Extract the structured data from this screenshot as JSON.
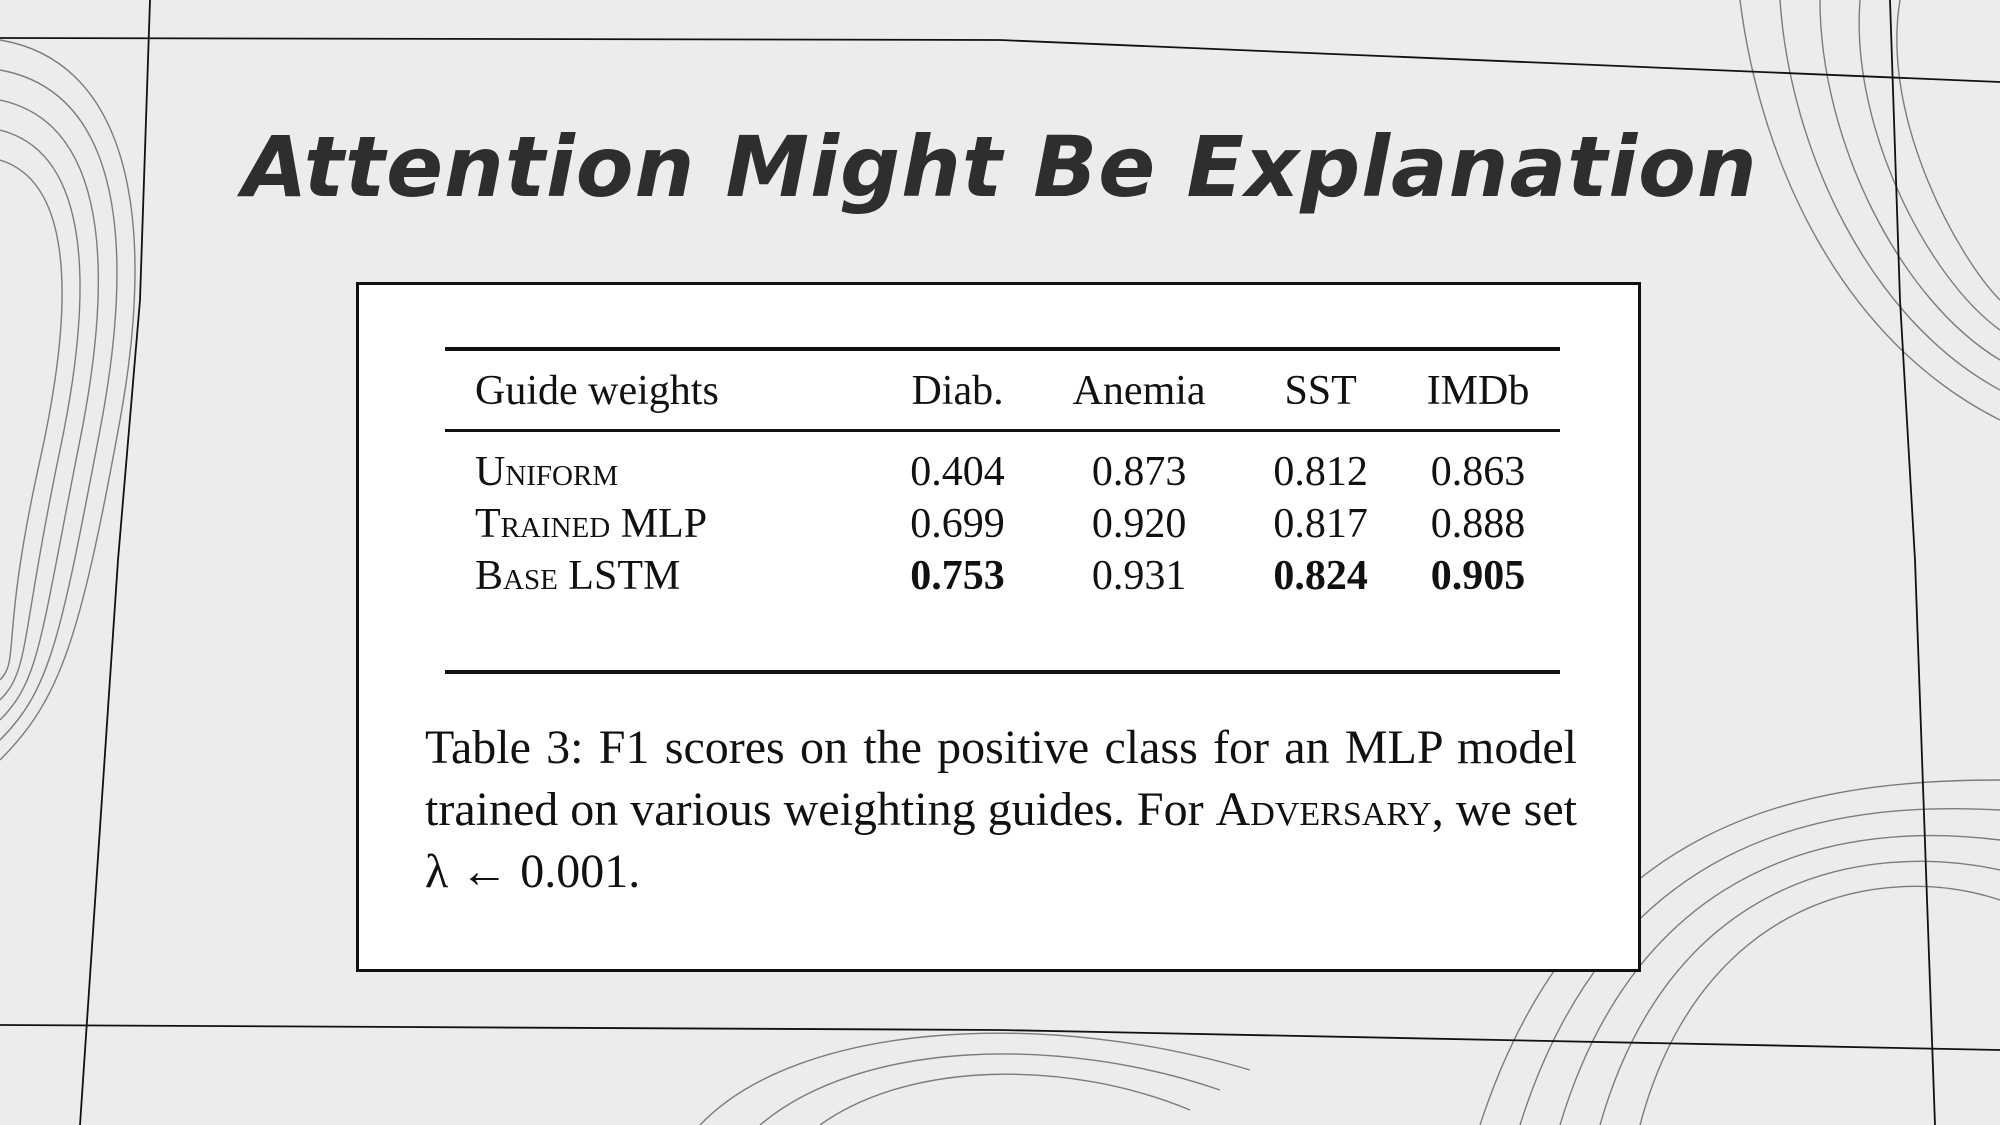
{
  "slide": {
    "title": "Attention Might Be Explanation"
  },
  "table": {
    "headers": [
      "Guide weights",
      "Diab.",
      "Anemia",
      "SST",
      "IMDb"
    ],
    "rows": [
      {
        "label": "Uniform",
        "values": [
          "0.404",
          "0.873",
          "0.812",
          "0.863"
        ],
        "bold": [
          false,
          false,
          false,
          false
        ]
      },
      {
        "label": "Trained MLP",
        "values": [
          "0.699",
          "0.920",
          "0.817",
          "0.888"
        ],
        "bold": [
          false,
          false,
          false,
          false
        ]
      },
      {
        "label": "Base LSTM",
        "values": [
          "0.753",
          "0.931",
          "0.824",
          "0.905"
        ],
        "bold": [
          true,
          false,
          true,
          true
        ]
      }
    ]
  },
  "caption": {
    "text": "Table 3: F1 scores on the positive class for an MLP model trained on various weighting guides. For ",
    "adversary": "Adversary",
    "tail": ", we set λ ← 0.001."
  }
}
